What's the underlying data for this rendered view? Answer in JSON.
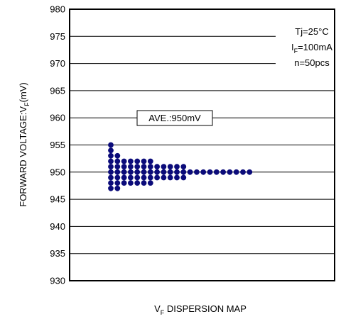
{
  "chart_data": {
    "type": "scatter",
    "title": "",
    "xlabel": "V_F DISPERSION MAP",
    "xlabel_main": "V",
    "xlabel_sub": "F",
    "xlabel_rest": " DISPERSION MAP",
    "ylabel": "FORWARD VOLTAGE:V_F(mV)",
    "ylabel_main": "FORWARD VOLTAGE:V",
    "ylabel_sub": "F",
    "ylabel_rest": "(mV)",
    "ylim": [
      930,
      980
    ],
    "yticks": [
      "930",
      "935",
      "940",
      "945",
      "950",
      "955",
      "960",
      "965",
      "970",
      "975",
      "980"
    ],
    "grid": true,
    "marker_color": "#0b0b7a",
    "average_label": "AVE.:950mV",
    "conditions": {
      "tj": "Tj=25°C",
      "if_main": "I",
      "if_sub": "F",
      "if_rest": "=100mA",
      "n": "n=50pcs"
    },
    "columns": [
      {
        "y_min": 947,
        "y_max": 955
      },
      {
        "y_min": 947,
        "y_max": 953
      },
      {
        "y_min": 948,
        "y_max": 952
      },
      {
        "y_min": 948,
        "y_max": 952
      },
      {
        "y_min": 948,
        "y_max": 952
      },
      {
        "y_min": 948,
        "y_max": 952
      },
      {
        "y_min": 948,
        "y_max": 952
      },
      {
        "y_min": 949,
        "y_max": 951
      },
      {
        "y_min": 949,
        "y_max": 951
      },
      {
        "y_min": 949,
        "y_max": 951
      },
      {
        "y_min": 949,
        "y_max": 951
      },
      {
        "y_min": 949,
        "y_max": 951
      },
      {
        "y_min": 950,
        "y_max": 950
      },
      {
        "y_min": 950,
        "y_max": 950
      },
      {
        "y_min": 950,
        "y_max": 950
      },
      {
        "y_min": 950,
        "y_max": 950
      },
      {
        "y_min": 950,
        "y_max": 950
      },
      {
        "y_min": 950,
        "y_max": 950
      },
      {
        "y_min": 950,
        "y_max": 950
      },
      {
        "y_min": 950,
        "y_max": 950
      },
      {
        "y_min": 950,
        "y_max": 950
      },
      {
        "y_min": 950,
        "y_max": 950
      }
    ]
  }
}
